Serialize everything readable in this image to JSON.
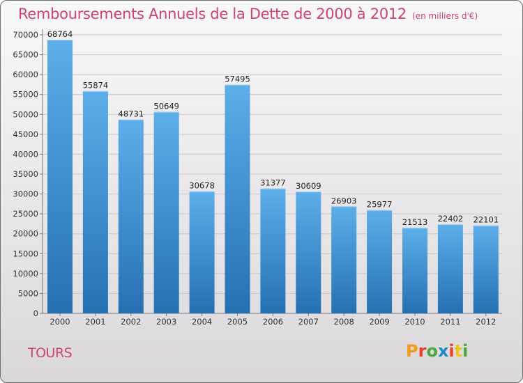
{
  "header": {
    "title": "Remboursements Annuels de la Dette de 2000 à 2012",
    "subtitle": "(en milliers d'€)"
  },
  "footer": {
    "city": "TOURS",
    "logo_text": "Proxiti"
  },
  "colors": {
    "title": "#d0436d",
    "bar_top": "#5daee9",
    "bar_bottom": "#2570b3",
    "logo_letters": [
      "#f29a1f",
      "#e8402a",
      "#4aa83c",
      "#1e88c7",
      "#e8402a",
      "#f2c418",
      "#4aa83c"
    ]
  },
  "chart_data": {
    "type": "bar",
    "title": "Remboursements Annuels de la Dette de 2000 à 2012",
    "subtitle": "(en milliers d'€)",
    "categories": [
      "2000",
      "2001",
      "2002",
      "2003",
      "2004",
      "2005",
      "2006",
      "2007",
      "2008",
      "2009",
      "2010",
      "2011",
      "2012"
    ],
    "values": [
      68764,
      55874,
      48731,
      50649,
      30678,
      57495,
      31377,
      30609,
      26903,
      25977,
      21513,
      22402,
      22101
    ],
    "ylim": [
      0,
      70000
    ],
    "yticks": [
      0,
      5000,
      10000,
      15000,
      20000,
      25000,
      30000,
      35000,
      40000,
      45000,
      50000,
      55000,
      60000,
      65000,
      70000
    ],
    "grid": true,
    "data_labels": true
  }
}
